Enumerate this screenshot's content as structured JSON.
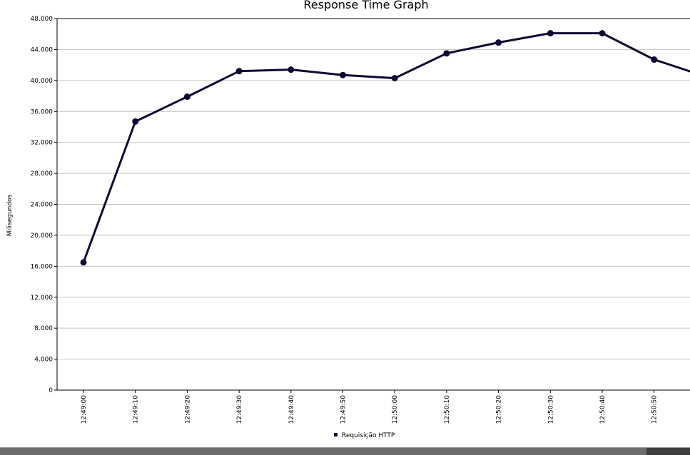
{
  "chart_data": {
    "type": "line",
    "title": "Response Time Graph",
    "xlabel": "",
    "ylabel": "Milisegundos",
    "ylim": [
      0,
      48000
    ],
    "y_ticks": [
      {
        "value": 0,
        "label": "0"
      },
      {
        "value": 4000,
        "label": "4.000"
      },
      {
        "value": 8000,
        "label": "8.000"
      },
      {
        "value": 12000,
        "label": "12.000"
      },
      {
        "value": 16000,
        "label": "16.000"
      },
      {
        "value": 20000,
        "label": "20.000"
      },
      {
        "value": 24000,
        "label": "24.000"
      },
      {
        "value": 28000,
        "label": "28.000"
      },
      {
        "value": 32000,
        "label": "32.000"
      },
      {
        "value": 36000,
        "label": "36.000"
      },
      {
        "value": 40000,
        "label": "40.000"
      },
      {
        "value": 44000,
        "label": "44.000"
      },
      {
        "value": 48000,
        "label": "48.000"
      }
    ],
    "categories": [
      "12:49:00",
      "12:49:10",
      "12:49:20",
      "12:49:30",
      "12:49:40",
      "12:49:50",
      "12:50:00",
      "12:50:10",
      "12:50:20",
      "12:50:30",
      "12:50:40",
      "12:50:50"
    ],
    "grid": true,
    "legend_position": "bottom-center",
    "series": [
      {
        "name": "Requisição HTTP",
        "color": "#0c0a33",
        "values": [
          16500,
          34700,
          37900,
          41200,
          41400,
          40700,
          40300,
          43500,
          44900,
          46100,
          46100,
          42700
        ],
        "trailing_value": 40500
      }
    ]
  }
}
